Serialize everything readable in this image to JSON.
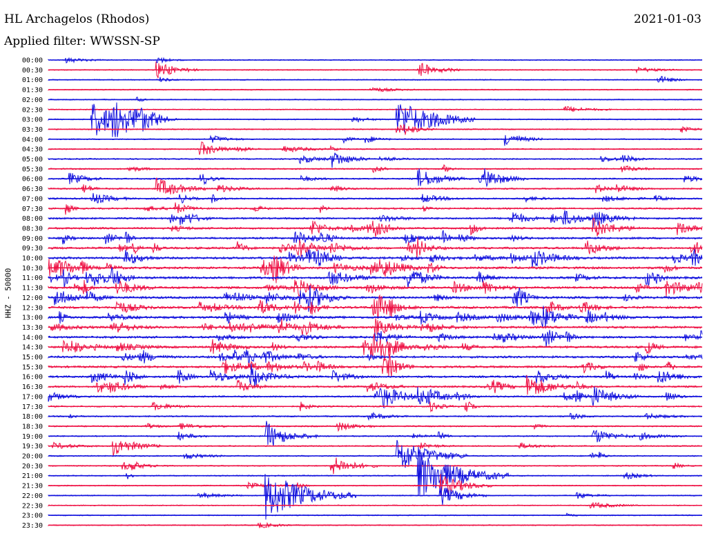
{
  "header": {
    "station": "HL Archagelos (Rhodos)",
    "date": "2021-01-03",
    "filter": "Applied filter: WWSSN-SP",
    "channel": "HHZ - 50000"
  },
  "chart_data": {
    "type": "line",
    "chart_kind": "helicorder",
    "title": "HL Archagelos (Rhodos)",
    "subtitle": "Applied filter: WWSSN-SP",
    "ylabel": "HHZ - 50000",
    "date": "2021-01-03",
    "row_labels": [
      "00:00",
      "00:30",
      "01:00",
      "01:30",
      "02:00",
      "02:30",
      "03:00",
      "03:30",
      "04:00",
      "04:30",
      "05:00",
      "05:30",
      "06:00",
      "06:30",
      "07:00",
      "07:30",
      "08:00",
      "08:30",
      "09:00",
      "09:30",
      "10:00",
      "10:30",
      "11:00",
      "11:30",
      "12:00",
      "12:30",
      "13:00",
      "13:30",
      "14:00",
      "14:30",
      "15:00",
      "15:30",
      "16:00",
      "16:30",
      "17:00",
      "17:30",
      "18:00",
      "18:30",
      "19:00",
      "19:30",
      "20:00",
      "20:30",
      "21:00",
      "21:30",
      "22:00",
      "22:30",
      "23:00",
      "23:30"
    ],
    "row_minutes": 30,
    "colors": [
      "#1010dd",
      "#ee1144"
    ],
    "grid": false,
    "legend": "none",
    "activity": [
      0.08,
      0.08,
      0.08,
      0.08,
      0.08,
      0.1,
      0.15,
      0.15,
      0.2,
      0.22,
      0.25,
      0.3,
      0.35,
      0.38,
      0.42,
      0.45,
      0.55,
      0.6,
      0.65,
      0.75,
      0.8,
      0.85,
      0.85,
      0.85,
      0.85,
      0.85,
      0.85,
      0.8,
      0.75,
      0.75,
      0.75,
      0.7,
      0.7,
      0.55,
      0.45,
      0.35,
      0.3,
      0.3,
      0.25,
      0.22,
      0.2,
      0.18,
      0.15,
      0.12,
      0.12,
      0.1,
      0.1,
      0.1
    ],
    "events": [
      {
        "time": "00:05",
        "amp": 0.4
      },
      {
        "time": "00:35",
        "amp": 1.0
      },
      {
        "time": "00:47",
        "amp": 1.0
      },
      {
        "time": "01:28",
        "amp": 0.5
      },
      {
        "time": "03:02",
        "amp": 2.2
      },
      {
        "time": "03:03",
        "amp": 1.6
      },
      {
        "time": "03:04",
        "amp": 1.0
      },
      {
        "time": "03:16",
        "amp": 2.5
      },
      {
        "time": "03:46",
        "amp": 0.6
      },
      {
        "time": "04:21",
        "amp": 0.8
      },
      {
        "time": "04:37",
        "amp": 0.9
      },
      {
        "time": "05:13",
        "amp": 1.0
      },
      {
        "time": "06:01",
        "amp": 0.7
      },
      {
        "time": "06:17",
        "amp": 1.2
      },
      {
        "time": "06:20",
        "amp": 1.0
      },
      {
        "time": "06:35",
        "amp": 1.3
      },
      {
        "time": "07:02",
        "amp": 0.8
      },
      {
        "time": "08:25",
        "amp": 1.0
      },
      {
        "time": "08:55",
        "amp": 1.2
      },
      {
        "time": "10:30",
        "amp": 1.0
      },
      {
        "time": "13:45",
        "amp": 1.0
      },
      {
        "time": "14:45",
        "amp": 1.2
      },
      {
        "time": "16:28",
        "amp": 0.9
      },
      {
        "time": "16:52",
        "amp": 1.4
      },
      {
        "time": "17:00",
        "amp": 0.6
      },
      {
        "time": "17:15",
        "amp": 1.2
      },
      {
        "time": "17:17",
        "amp": 1.0
      },
      {
        "time": "17:25",
        "amp": 1.2
      },
      {
        "time": "19:06",
        "amp": 0.5
      },
      {
        "time": "19:10",
        "amp": 1.4
      },
      {
        "time": "19:25",
        "amp": 1.0
      },
      {
        "time": "19:33",
        "amp": 1.2
      },
      {
        "time": "20:16",
        "amp": 2.2
      },
      {
        "time": "20:43",
        "amp": 1.2
      },
      {
        "time": "21:17",
        "amp": 3.0
      },
      {
        "time": "21:48",
        "amp": 1.4
      },
      {
        "time": "22:10",
        "amp": 3.0
      },
      {
        "time": "22:18",
        "amp": 1.2
      }
    ]
  }
}
